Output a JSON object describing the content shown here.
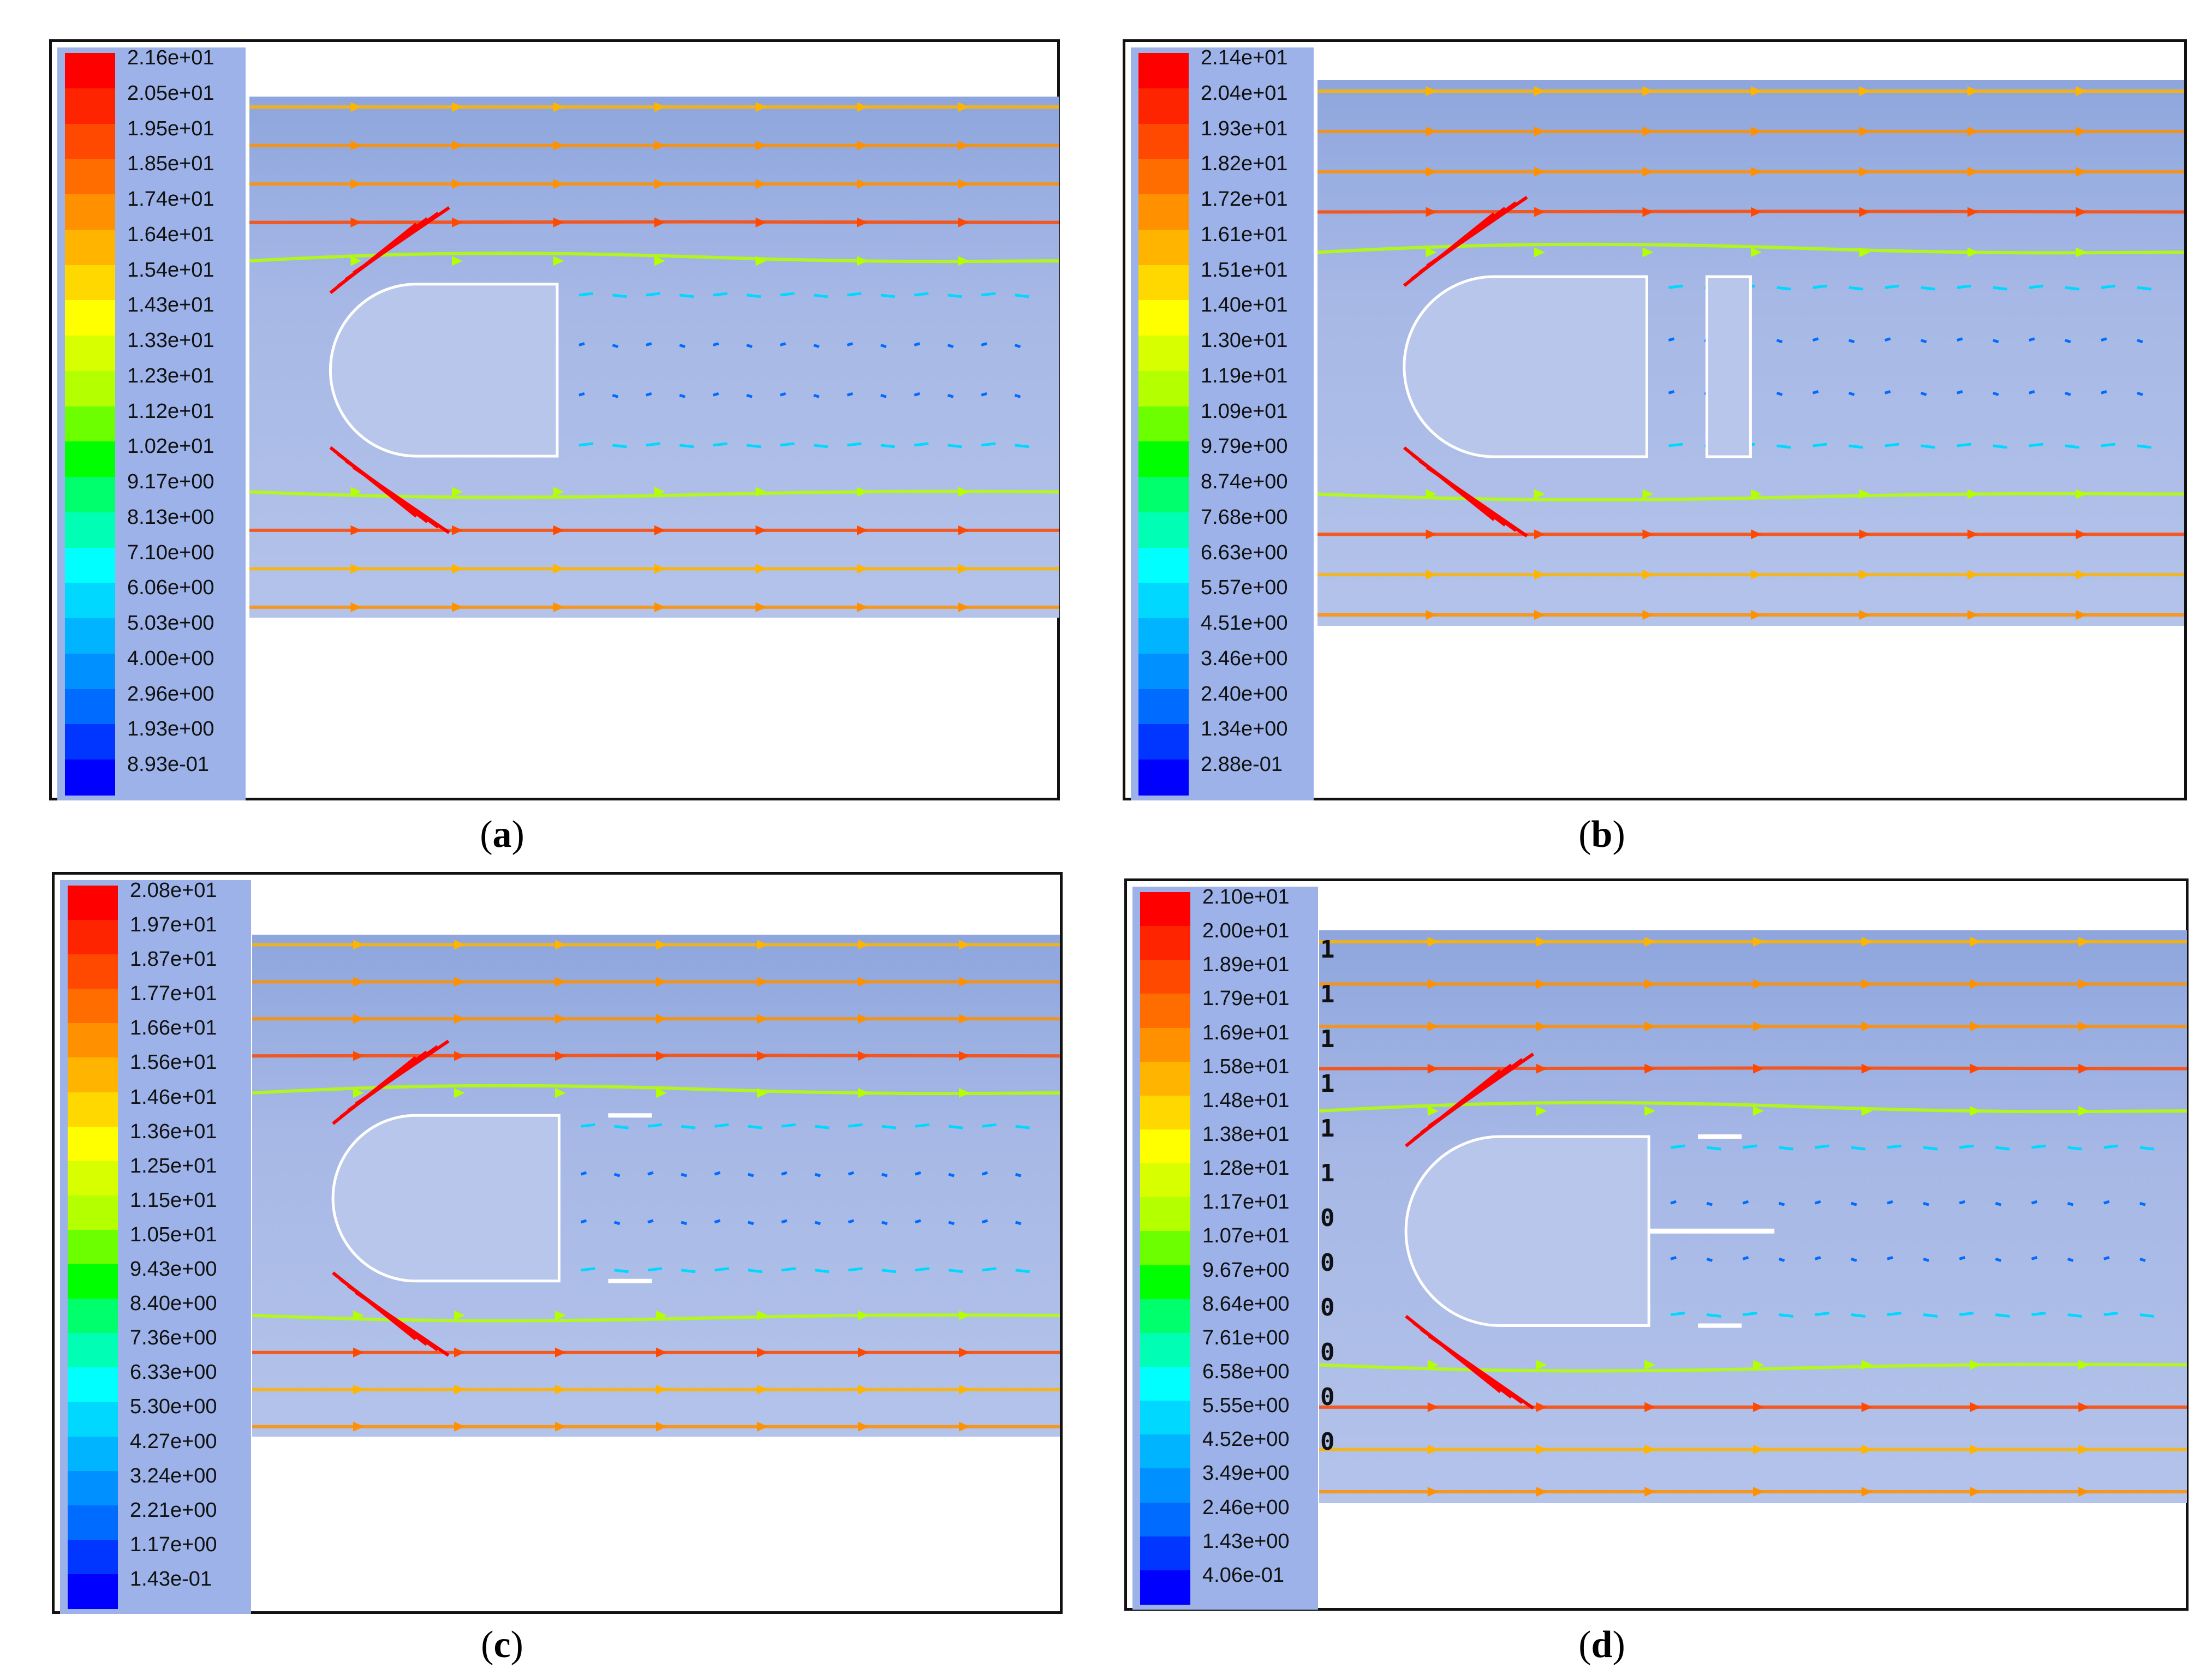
{
  "figure": {
    "panels": [
      {
        "id": "a",
        "caption_label": "a",
        "legend": [
          "2.16e+01",
          "2.05e+01",
          "1.95e+01",
          "1.85e+01",
          "1.74e+01",
          "1.64e+01",
          "1.54e+01",
          "1.43e+01",
          "1.33e+01",
          "1.23e+01",
          "1.12e+01",
          "1.02e+01",
          "9.17e+00",
          "8.13e+00",
          "7.10e+00",
          "6.06e+00",
          "5.03e+00",
          "4.00e+00",
          "2.96e+00",
          "1.93e+00",
          "8.93e-01"
        ],
        "geometry": "semi-cylinder body",
        "edge_glyphs": []
      },
      {
        "id": "b",
        "caption_label": "b",
        "legend": [
          "2.14e+01",
          "2.04e+01",
          "1.93e+01",
          "1.82e+01",
          "1.72e+01",
          "1.61e+01",
          "1.51e+01",
          "1.40e+01",
          "1.30e+01",
          "1.19e+01",
          "1.09e+01",
          "9.79e+00",
          "8.74e+00",
          "7.68e+00",
          "6.63e+00",
          "5.57e+00",
          "4.51e+00",
          "3.46e+00",
          "2.40e+00",
          "1.34e+00",
          "2.88e-01"
        ],
        "geometry": "semi-cylinder body with downstream plate",
        "edge_glyphs": []
      },
      {
        "id": "c",
        "caption_label": "c",
        "legend": [
          "2.08e+01",
          "1.97e+01",
          "1.87e+01",
          "1.77e+01",
          "1.66e+01",
          "1.56e+01",
          "1.46e+01",
          "1.36e+01",
          "1.25e+01",
          "1.15e+01",
          "1.05e+01",
          "9.43e+00",
          "8.40e+00",
          "7.36e+00",
          "6.33e+00",
          "5.30e+00",
          "4.27e+00",
          "3.24e+00",
          "2.21e+00",
          "1.17e+00",
          "1.43e-01"
        ],
        "geometry": "semi-cylinder body with two short wake plates",
        "edge_glyphs": []
      },
      {
        "id": "d",
        "caption_label": "d",
        "legend": [
          "2.10e+01",
          "2.00e+01",
          "1.89e+01",
          "1.79e+01",
          "1.69e+01",
          "1.58e+01",
          "1.48e+01",
          "1.38e+01",
          "1.28e+01",
          "1.17e+01",
          "1.07e+01",
          "9.67e+00",
          "8.64e+00",
          "7.61e+00",
          "6.58e+00",
          "5.55e+00",
          "4.52e+00",
          "3.49e+00",
          "2.46e+00",
          "1.43e+00",
          "4.06e-01"
        ],
        "geometry": "semi-cylinder body with splitter plate and two wake plates",
        "edge_glyphs": [
          "1",
          "1",
          "1",
          "1",
          "1",
          "1",
          "0",
          "0",
          "0",
          "0",
          "0",
          "0"
        ]
      }
    ],
    "colors": {
      "scale": [
        "#ff0000",
        "#ff2400",
        "#ff4800",
        "#ff6c00",
        "#ff9000",
        "#ffb400",
        "#ffd800",
        "#ffff00",
        "#d8ff00",
        "#b4ff00",
        "#6cff00",
        "#00ff00",
        "#00ff6c",
        "#00ffb4",
        "#00ffff",
        "#00d8ff",
        "#00b4ff",
        "#0090ff",
        "#006cff",
        "#0036ff",
        "#0000ff"
      ],
      "background": "#9cb2e8",
      "body_outline": "#ffffff"
    }
  }
}
